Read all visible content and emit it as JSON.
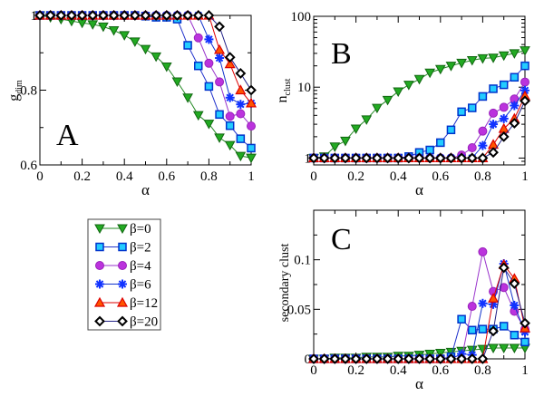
{
  "chart_data": [
    {
      "id": "A",
      "type": "line",
      "panel_label": "A",
      "xlabel": "α",
      "ylabel": "g",
      "ylabel_sub": "dim",
      "xlim": [
        0,
        1
      ],
      "ylim": [
        0.6,
        1.0
      ],
      "yscale": "linear",
      "xticks": [
        0,
        0.2,
        0.4,
        0.6,
        0.8,
        1
      ],
      "xtick_labels": [
        "0",
        "0.2",
        "0.4",
        "0.6",
        "0.8",
        "1"
      ],
      "yticks": [
        0.6,
        0.8,
        1.0
      ],
      "ytick_labels": [
        "0.6",
        "0.8",
        "1"
      ],
      "x": [
        0,
        0.05,
        0.1,
        0.15,
        0.2,
        0.25,
        0.3,
        0.35,
        0.4,
        0.45,
        0.5,
        0.55,
        0.6,
        0.65,
        0.7,
        0.75,
        0.8,
        0.85,
        0.9,
        0.95,
        1
      ],
      "series": [
        {
          "name": "β=0",
          "values": [
            1,
            0.995,
            0.99,
            0.985,
            0.98,
            0.976,
            0.97,
            0.96,
            0.947,
            0.93,
            0.91,
            0.89,
            0.863,
            0.823,
            0.78,
            0.733,
            0.71,
            0.673,
            0.653,
            0.624,
            0.619
          ]
        },
        {
          "name": "β=2",
          "values": [
            1,
            1,
            1,
            1,
            1,
            1,
            1,
            1,
            1,
            1,
            0.998,
            0.995,
            0.995,
            0.99,
            0.92,
            0.865,
            0.81,
            0.735,
            0.705,
            0.67,
            0.645
          ]
        },
        {
          "name": "β=4",
          "values": [
            1,
            1,
            1,
            1,
            1,
            1,
            1,
            1,
            1,
            1,
            1,
            1,
            1,
            1,
            1,
            0.94,
            0.872,
            0.822,
            0.73,
            0.737,
            0.704
          ]
        },
        {
          "name": "β=6",
          "values": [
            1,
            1,
            1,
            1,
            1,
            1,
            1,
            1,
            1,
            1,
            1,
            1,
            1,
            1,
            1,
            1,
            0.936,
            0.886,
            0.78,
            0.762,
            0.765
          ]
        },
        {
          "name": "β=12",
          "values": [
            1,
            1,
            1,
            1,
            1,
            1,
            1,
            1,
            1,
            1,
            1,
            1,
            1,
            1,
            1,
            1,
            1,
            0.908,
            0.87,
            0.8,
            0.765
          ]
        },
        {
          "name": "β=20",
          "values": [
            1,
            1,
            1,
            1,
            1,
            1,
            1,
            1,
            1,
            1,
            1,
            1,
            1,
            1,
            1,
            1,
            1,
            0.97,
            0.888,
            0.845,
            0.8
          ]
        }
      ]
    },
    {
      "id": "B",
      "type": "line",
      "panel_label": "B",
      "xlabel": "α",
      "ylabel": "n",
      "ylabel_sub": "clust",
      "xlim": [
        0,
        1
      ],
      "ylim": [
        0.8,
        100
      ],
      "yscale": "log",
      "xticks": [
        0,
        0.2,
        0.4,
        0.6,
        0.8,
        1
      ],
      "xtick_labels": [
        "0",
        "0.2",
        "0.4",
        "0.6",
        "0.8",
        "1"
      ],
      "yticks": [
        1,
        10,
        100
      ],
      "ytick_labels": [
        "1",
        "10",
        "100"
      ],
      "x": [
        0,
        0.05,
        0.1,
        0.15,
        0.2,
        0.25,
        0.3,
        0.35,
        0.4,
        0.45,
        0.5,
        0.55,
        0.6,
        0.65,
        0.7,
        0.75,
        0.8,
        0.85,
        0.9,
        0.95,
        1
      ],
      "series": [
        {
          "name": "β=0",
          "values": [
            1,
            1.05,
            1.45,
            1.75,
            2.6,
            3.5,
            5.1,
            6.6,
            8.7,
            10.8,
            13,
            16,
            18,
            20,
            22,
            24,
            25.5,
            26,
            28,
            30,
            33
          ]
        },
        {
          "name": "β=2",
          "values": [
            1,
            1,
            1,
            1,
            1,
            1,
            1,
            1,
            1,
            1.05,
            1.2,
            1.3,
            1.65,
            2.5,
            4.5,
            5.1,
            7.4,
            9.5,
            10.8,
            13.8,
            20
          ]
        },
        {
          "name": "β=4",
          "values": [
            1,
            1,
            1,
            1,
            1,
            1,
            1,
            1,
            1,
            1,
            1,
            1,
            1,
            1,
            1.1,
            1.4,
            2.4,
            4.3,
            5.2,
            6.8,
            11.8
          ]
        },
        {
          "name": "β=6",
          "values": [
            1,
            1,
            1,
            1,
            1,
            1,
            1,
            1,
            1,
            1,
            1,
            1,
            1,
            1,
            1,
            1,
            1.5,
            3,
            3.6,
            5.5,
            9
          ]
        },
        {
          "name": "β=12",
          "values": [
            1,
            1,
            1,
            1,
            1,
            1,
            1,
            1,
            1,
            1,
            1,
            1,
            1,
            1,
            1,
            1,
            1,
            1.55,
            2.6,
            3.6,
            7.5
          ]
        },
        {
          "name": "β=20",
          "values": [
            1,
            1,
            1,
            1,
            1,
            1,
            1,
            1,
            1,
            1,
            1,
            1,
            1,
            1,
            1,
            1,
            1,
            1.2,
            2,
            3.1,
            6.4
          ]
        }
      ]
    },
    {
      "id": "C",
      "type": "line",
      "panel_label": "C",
      "xlabel": "α",
      "ylabel": "secondary clust",
      "ylabel_sub": "",
      "xlim": [
        0,
        1
      ],
      "ylim": [
        0,
        0.15
      ],
      "yscale": "linear",
      "xticks": [
        0,
        0.2,
        0.4,
        0.6,
        0.8,
        1
      ],
      "xtick_labels": [
        "0",
        "0.2",
        "0.4",
        "0.6",
        "0.8",
        "1"
      ],
      "yticks": [
        0,
        0.05,
        0.1
      ],
      "ytick_labels": [
        "0",
        "0.05",
        "0.1"
      ],
      "x": [
        0,
        0.05,
        0.1,
        0.15,
        0.2,
        0.25,
        0.3,
        0.35,
        0.4,
        0.45,
        0.5,
        0.55,
        0.6,
        0.65,
        0.7,
        0.75,
        0.8,
        0.85,
        0.9,
        0.95,
        1
      ],
      "series": [
        {
          "name": "β=0",
          "values": [
            0,
            0,
            0.001,
            0.001,
            0.001,
            0.002,
            0.002,
            0.002,
            0.003,
            0.003,
            0.004,
            0.005,
            0.006,
            0.007,
            0.008,
            0.009,
            0.01,
            0.011,
            0.011,
            0.011,
            0.011
          ]
        },
        {
          "name": "β=2",
          "values": [
            0,
            0,
            0,
            0,
            0,
            0,
            0,
            0,
            0,
            0,
            0,
            0,
            0,
            0.002,
            0.04,
            0.029,
            0.03,
            0.03,
            0.033,
            0.024,
            0.017
          ]
        },
        {
          "name": "β=4",
          "values": [
            0,
            0,
            0,
            0,
            0,
            0,
            0,
            0,
            0,
            0,
            0,
            0,
            0,
            0,
            0,
            0.053,
            0.108,
            0.068,
            0.072,
            0.048,
            0.03
          ]
        },
        {
          "name": "β=6",
          "values": [
            0,
            0,
            0,
            0,
            0,
            0,
            0,
            0,
            0,
            0,
            0,
            0,
            0,
            0,
            0.005,
            0.004,
            0.056,
            0.055,
            0.096,
            0.054,
            0.027
          ]
        },
        {
          "name": "β=12",
          "values": [
            0,
            0,
            0,
            0,
            0,
            0,
            0,
            0,
            0,
            0,
            0,
            0,
            0,
            0,
            0,
            0,
            0,
            0.061,
            0.095,
            0.081,
            0.031
          ]
        },
        {
          "name": "β=20",
          "values": [
            0,
            0,
            0,
            0,
            0,
            0,
            0,
            0,
            0,
            0,
            0,
            0,
            0,
            0,
            0,
            0,
            0,
            0.028,
            0.092,
            0.076,
            0.036
          ]
        }
      ]
    }
  ],
  "legend": {
    "placement": "lower-left",
    "entries": [
      {
        "label": "β=0",
        "marker": "triangle-down",
        "fill": "#22aa22",
        "stroke": "#116611",
        "line": "#228822"
      },
      {
        "label": "β=2",
        "marker": "square",
        "fill": "#22ccff",
        "stroke": "#0033cc",
        "line": "#2233cc"
      },
      {
        "label": "β=4",
        "marker": "circle",
        "fill": "#bb33dd",
        "stroke": "#9922bb",
        "line": "#9933cc"
      },
      {
        "label": "β=6",
        "marker": "asterisk",
        "fill": "#1133ff",
        "stroke": "#1133ff",
        "line": "#1133cc"
      },
      {
        "label": "β=12",
        "marker": "triangle-up",
        "fill": "#ff5500",
        "stroke": "#dd0000",
        "line": "#dd0000"
      },
      {
        "label": "β=20",
        "marker": "diamond",
        "fill": "#ffffff",
        "stroke": "#000000",
        "line": "#222288"
      }
    ]
  }
}
